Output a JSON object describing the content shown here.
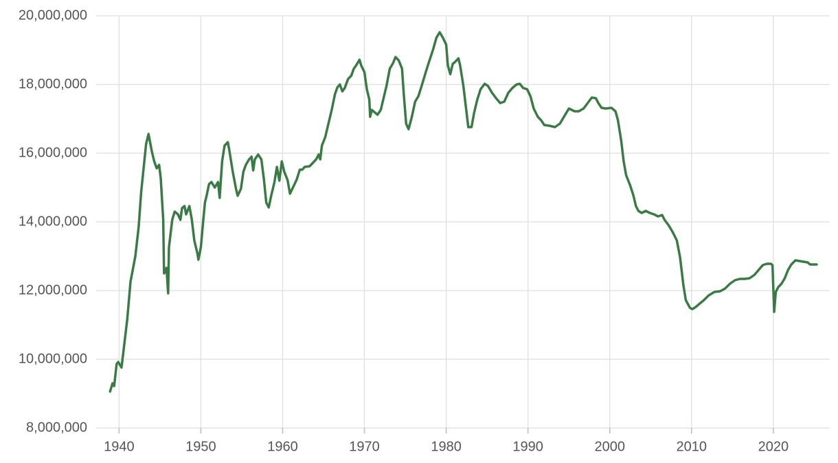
{
  "chart_data": {
    "type": "line",
    "x": [
      1938.9,
      1939.2,
      1939.4,
      1939.7,
      1939.9,
      1940.3,
      1940.6,
      1941.0,
      1941.4,
      1941.8,
      1942.0,
      1942.4,
      1942.7,
      1943.0,
      1943.3,
      1943.6,
      1944.0,
      1944.3,
      1944.6,
      1944.9,
      1945.1,
      1945.4,
      1945.5,
      1945.8,
      1946.0,
      1946.1,
      1946.5,
      1946.8,
      1947.2,
      1947.5,
      1947.7,
      1948.0,
      1948.2,
      1948.6,
      1948.9,
      1949.2,
      1949.6,
      1949.7,
      1950.0,
      1950.3,
      1950.5,
      1950.7,
      1951.0,
      1951.3,
      1951.7,
      1952.1,
      1952.3,
      1952.6,
      1952.9,
      1953.3,
      1953.5,
      1953.9,
      1954.3,
      1954.5,
      1954.9,
      1955.2,
      1955.5,
      1955.9,
      1956.2,
      1956.4,
      1956.6,
      1957.0,
      1957.4,
      1957.7,
      1958.0,
      1958.3,
      1958.6,
      1959.0,
      1959.3,
      1959.6,
      1959.9,
      1960.2,
      1960.6,
      1960.9,
      1961.3,
      1961.7,
      1962.1,
      1962.4,
      1962.7,
      1963.3,
      1963.7,
      1964.1,
      1964.4,
      1964.6,
      1964.8,
      1965.2,
      1965.6,
      1966.0,
      1966.4,
      1966.7,
      1967.0,
      1967.3,
      1967.6,
      1968.0,
      1968.4,
      1968.7,
      1969.0,
      1969.4,
      1969.6,
      1970.0,
      1970.3,
      1970.6,
      1970.7,
      1970.9,
      1971.2,
      1971.6,
      1972.0,
      1972.3,
      1972.7,
      1973.1,
      1973.5,
      1973.8,
      1974.2,
      1974.6,
      1974.8,
      1975.1,
      1975.4,
      1975.8,
      1976.2,
      1976.6,
      1977.0,
      1977.5,
      1977.9,
      1978.4,
      1978.8,
      1979.2,
      1979.6,
      1980.0,
      1980.2,
      1980.5,
      1980.8,
      1981.1,
      1981.5,
      1981.7,
      1982.1,
      1982.4,
      1982.7,
      1983.1,
      1983.4,
      1983.8,
      1984.2,
      1984.7,
      1985.1,
      1985.6,
      1986.1,
      1986.6,
      1987.1,
      1987.6,
      1988.1,
      1988.6,
      1989.0,
      1989.4,
      1989.9,
      1990.3,
      1990.7,
      1991.2,
      1991.6,
      1992.0,
      1992.6,
      1993.3,
      1993.9,
      1994.5,
      1995.0,
      1995.7,
      1996.2,
      1996.8,
      1997.3,
      1997.8,
      1998.3,
      1998.6,
      1999.0,
      1999.5,
      2000.2,
      2000.7,
      2001.0,
      2001.4,
      2001.7,
      2002.0,
      2002.5,
      2002.9,
      2003.2,
      2003.5,
      2003.9,
      2004.4,
      2004.9,
      2005.4,
      2005.9,
      2006.4,
      2006.7,
      2007.2,
      2007.7,
      2008.2,
      2008.6,
      2009.0,
      2009.3,
      2009.8,
      2010.1,
      2010.5,
      2010.9,
      2011.5,
      2012.1,
      2012.8,
      2013.5,
      2014.1,
      2014.7,
      2015.3,
      2015.9,
      2016.5,
      2017.1,
      2017.7,
      2018.2,
      2018.7,
      2019.2,
      2019.7,
      2019.9,
      2020.1,
      2020.3,
      2020.6,
      2021.0,
      2021.4,
      2021.8,
      2022.2,
      2022.7,
      2023.2,
      2023.7,
      2024.2,
      2024.5,
      2024.9,
      2025.3
    ],
    "series": [
      {
        "color": "#3a7a44",
        "values": [
          9060000,
          9300000,
          9220000,
          9860000,
          9920000,
          9760000,
          10360000,
          11160000,
          12260000,
          12760000,
          13020000,
          13860000,
          14860000,
          15560000,
          16260000,
          16560000,
          16060000,
          15760000,
          15560000,
          15660000,
          15260000,
          14060000,
          12500000,
          12660000,
          11920000,
          13260000,
          14060000,
          14300000,
          14220000,
          14060000,
          14400000,
          14460000,
          14220000,
          14460000,
          14060000,
          13460000,
          13060000,
          12900000,
          13260000,
          14060000,
          14560000,
          14760000,
          15100000,
          15160000,
          15000000,
          15160000,
          14700000,
          15760000,
          16220000,
          16320000,
          16060000,
          15460000,
          14960000,
          14760000,
          14960000,
          15460000,
          15660000,
          15820000,
          15900000,
          15500000,
          15820000,
          15960000,
          15820000,
          15260000,
          14560000,
          14420000,
          14760000,
          15160000,
          15600000,
          15200000,
          15760000,
          15460000,
          15220000,
          14820000,
          15020000,
          15220000,
          15520000,
          15520000,
          15600000,
          15620000,
          15720000,
          15820000,
          15960000,
          15820000,
          16220000,
          16460000,
          16860000,
          17260000,
          17720000,
          17920000,
          18000000,
          17800000,
          17900000,
          18160000,
          18260000,
          18460000,
          18560000,
          18720000,
          18560000,
          18360000,
          17860000,
          17560000,
          17060000,
          17260000,
          17200000,
          17120000,
          17260000,
          17560000,
          17960000,
          18460000,
          18620000,
          18800000,
          18700000,
          18460000,
          17760000,
          16860000,
          16700000,
          17060000,
          17500000,
          17660000,
          17960000,
          18360000,
          18660000,
          19020000,
          19360000,
          19520000,
          19360000,
          19160000,
          18560000,
          18300000,
          18600000,
          18660000,
          18760000,
          18560000,
          17960000,
          17360000,
          16760000,
          16760000,
          17160000,
          17560000,
          17860000,
          18020000,
          17960000,
          17760000,
          17600000,
          17460000,
          17500000,
          17760000,
          17900000,
          18000000,
          18020000,
          17900000,
          17860000,
          17660000,
          17300000,
          17060000,
          16960000,
          16820000,
          16800000,
          16760000,
          16860000,
          17100000,
          17300000,
          17220000,
          17220000,
          17300000,
          17460000,
          17620000,
          17600000,
          17460000,
          17320000,
          17300000,
          17320000,
          17220000,
          16960000,
          16360000,
          15760000,
          15360000,
          15060000,
          14760000,
          14460000,
          14320000,
          14260000,
          14320000,
          14260000,
          14220000,
          14160000,
          14200000,
          14060000,
          13900000,
          13700000,
          13460000,
          12960000,
          12160000,
          11720000,
          11500000,
          11460000,
          11520000,
          11600000,
          11720000,
          11860000,
          11960000,
          11980000,
          12060000,
          12200000,
          12300000,
          12340000,
          12340000,
          12360000,
          12460000,
          12600000,
          12740000,
          12780000,
          12780000,
          12740000,
          11380000,
          11960000,
          12100000,
          12200000,
          12360000,
          12600000,
          12760000,
          12880000,
          12860000,
          12840000,
          12820000,
          12760000,
          12760000,
          12760000
        ]
      }
    ],
    "xlim": [
      1937.2,
      2026.9
    ],
    "xticks": [
      1940,
      1950,
      1960,
      1970,
      1980,
      1990,
      2000,
      2010,
      2020
    ],
    "ylim": [
      8000000,
      20000000
    ],
    "yticks": [
      {
        "value": 8000000,
        "label": "8,000,000"
      },
      {
        "value": 10000000,
        "label": "10,000,000"
      },
      {
        "value": 12000000,
        "label": "12,000,000"
      },
      {
        "value": 14000000,
        "label": "14,000,000"
      },
      {
        "value": 16000000,
        "label": "16,000,000"
      },
      {
        "value": 18000000,
        "label": "18,000,000"
      },
      {
        "value": 20000000,
        "label": "20,000,000"
      }
    ],
    "grid": true
  }
}
